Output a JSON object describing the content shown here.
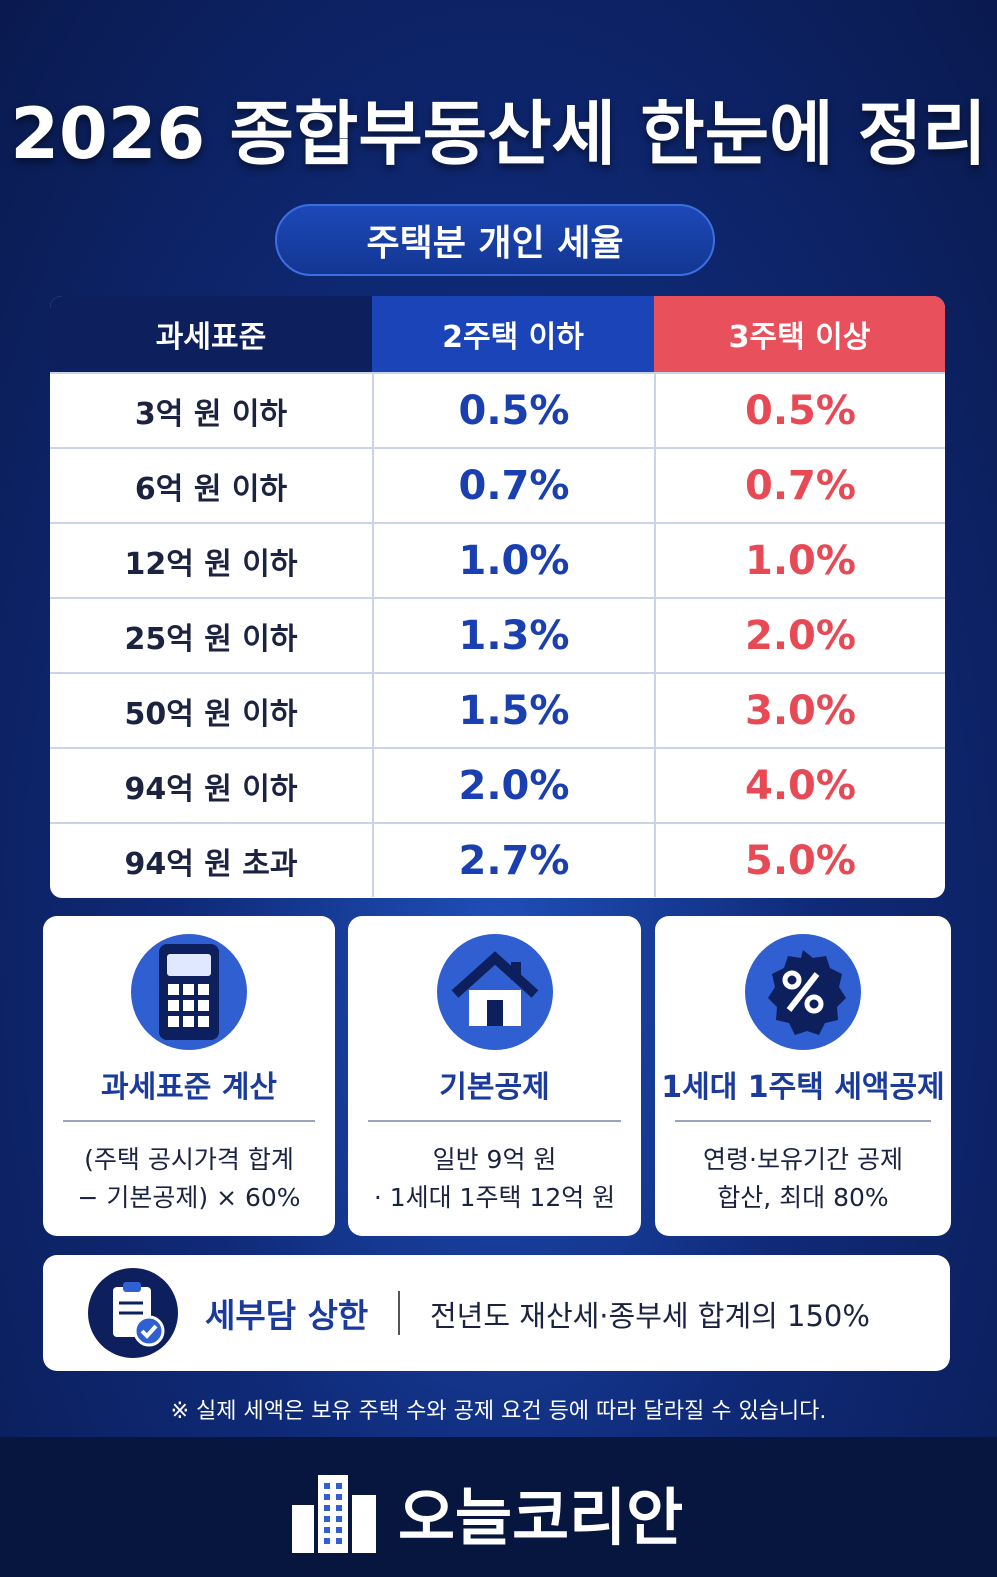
{
  "header": {
    "title": "2026 종합부동산세 한눈에 정리",
    "subtitle": "주택분 개인 세율"
  },
  "table": {
    "columns": [
      "과세표준",
      "2주택 이하",
      "3주택 이상"
    ],
    "rows": [
      [
        "3억 원 이하",
        "0.5%",
        "0.5%"
      ],
      [
        "6억 원 이하",
        "0.7%",
        "0.7%"
      ],
      [
        "12억 원 이하",
        "1.0%",
        "1.0%"
      ],
      [
        "25억 원 이하",
        "1.3%",
        "2.0%"
      ],
      [
        "50억 원 이하",
        "1.5%",
        "3.0%"
      ],
      [
        "94억 원 이하",
        "2.0%",
        "4.0%"
      ],
      [
        "94억 원 초과",
        "2.7%",
        "5.0%"
      ]
    ]
  },
  "cards": [
    {
      "title": "과세표준 계산",
      "lines": [
        "(주택 공시가격 합계",
        "− 기본공제) × 60%"
      ]
    },
    {
      "title": "기본공제",
      "lines": [
        "일반 9억 원",
        "· 1세대 1주택 12억 원"
      ]
    },
    {
      "title": "1세대 1주택 세액공제",
      "lines": [
        "연령·보유기간 공제",
        "합산, 최대 80%"
      ]
    }
  ],
  "cap": {
    "title": "세부담 상한",
    "text": "전년도 재산세·종부세 합계의 150%"
  },
  "note": "※ 실제 세액은 보유 주택 수와 공제 요건 등에 따라 달라질 수 있습니다.",
  "brand": "오늘코리안"
}
